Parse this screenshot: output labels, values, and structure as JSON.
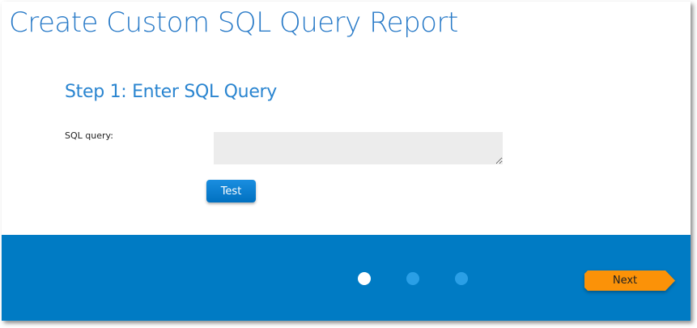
{
  "title": "Create Custom SQL Query Report",
  "step_heading": "Step 1: Enter SQL Query",
  "form": {
    "sql_label": "SQL query:",
    "sql_value": ""
  },
  "buttons": {
    "test": "Test",
    "next": "Next"
  },
  "pager": {
    "steps": 3,
    "active": 1
  },
  "colors": {
    "accent": "#007bc4",
    "next": "#fb9208",
    "title": "#2a7bc8"
  }
}
